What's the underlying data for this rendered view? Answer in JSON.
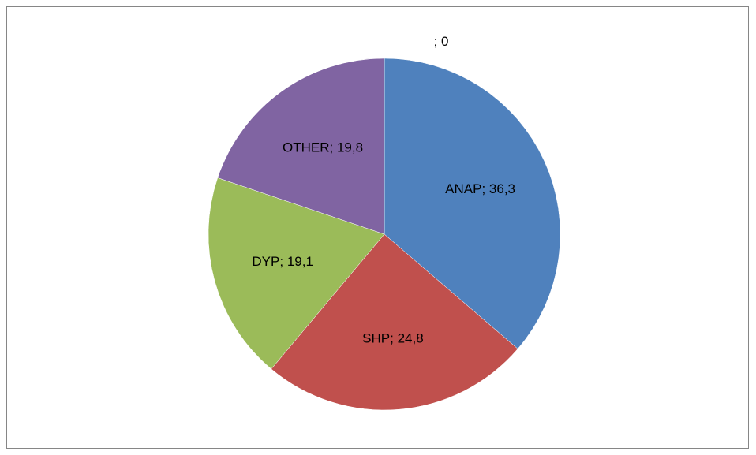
{
  "chart_data": {
    "type": "pie",
    "categories": [
      "ANAP",
      "SHP",
      "DYP",
      "OTHER",
      null
    ],
    "values": [
      36.3,
      24.8,
      19.1,
      19.8,
      0
    ],
    "value_labels": [
      "36,3",
      "24,8",
      "19,1",
      "19,8",
      "0"
    ],
    "label_separator": "; ",
    "colors": [
      "#4f81bd",
      "#c0504d",
      "#9bbb59",
      "#8064a2",
      "#4bacc6"
    ],
    "start_angle": 0,
    "direction": "clockwise"
  }
}
